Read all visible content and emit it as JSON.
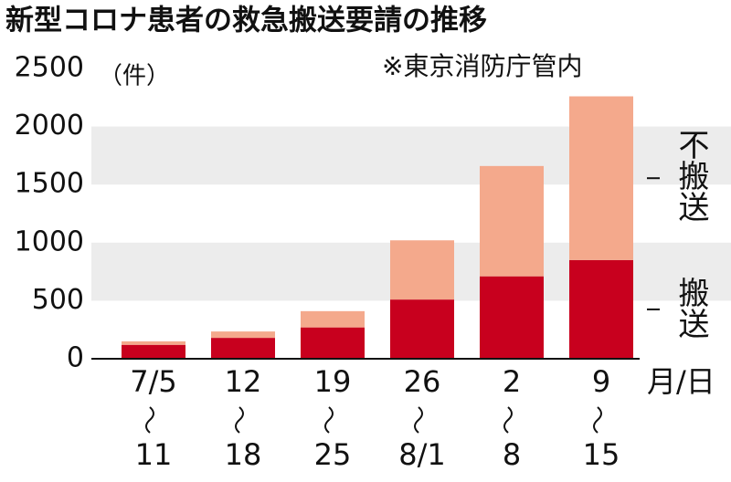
{
  "chart_data": {
    "type": "stacked_bar",
    "title": "新型コロナ患者の救急搬送要請の推移",
    "y_label": "（件）",
    "note": "※東京消防庁管内",
    "x_label": "月/日",
    "categories": [
      [
        "7/5",
        "11"
      ],
      [
        "12",
        "18"
      ],
      [
        "19",
        "25"
      ],
      [
        "26",
        "8/1"
      ],
      [
        "2",
        "8"
      ],
      [
        "9",
        "15"
      ]
    ],
    "series": [
      {
        "name": "搬送",
        "color": "#c8001e",
        "values": [
          120,
          180,
          270,
          510,
          710,
          850
        ]
      },
      {
        "name": "不搬送",
        "color": "#f4a98c",
        "values": [
          30,
          55,
          140,
          510,
          950,
          1410
        ]
      }
    ],
    "ylim": [
      0,
      2500
    ],
    "yticks": [
      0,
      500,
      1000,
      1500,
      2000,
      2500
    ],
    "banded_grid": true
  }
}
